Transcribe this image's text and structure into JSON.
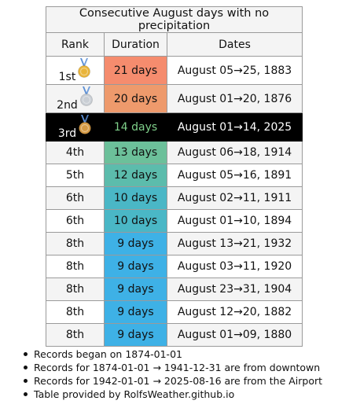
{
  "title": "Consecutive August days with no precipitation",
  "headers": {
    "rank": "Rank",
    "duration": "Duration",
    "dates": "Dates"
  },
  "rows": [
    {
      "rank": "1st",
      "medal": "gold-medal-icon",
      "duration": "21 days",
      "dates": "August 05→25, 1883",
      "color": "#f58c6e"
    },
    {
      "rank": "2nd",
      "medal": "silver-medal-icon",
      "duration": "20 days",
      "dates": "August 01→20, 1876",
      "color": "#ee9a6c"
    },
    {
      "rank": "3rd",
      "medal": "bronze-medal-icon",
      "duration": "14 days",
      "dates": "August 01→14, 2025",
      "color": "#000000",
      "current": true
    },
    {
      "rank": "4th",
      "duration": "13 days",
      "dates": "August 06→18, 1914",
      "color": "#6cc09a"
    },
    {
      "rank": "5th",
      "duration": "12 days",
      "dates": "August 05→16, 1891",
      "color": "#5cbcac"
    },
    {
      "rank": "6th",
      "duration": "10 days",
      "dates": "August 02→11, 1911",
      "color": "#4ab7c6"
    },
    {
      "rank": "6th",
      "duration": "10 days",
      "dates": "August 01→10, 1894",
      "color": "#4ab7c6"
    },
    {
      "rank": "8th",
      "duration": "9 days",
      "dates": "August 13→21, 1932",
      "color": "#3eb1e6"
    },
    {
      "rank": "8th",
      "duration": "9 days",
      "dates": "August 03→11, 1920",
      "color": "#3eb1e6"
    },
    {
      "rank": "8th",
      "duration": "9 days",
      "dates": "August 23→31, 1904",
      "color": "#3eb1e6"
    },
    {
      "rank": "8th",
      "duration": "9 days",
      "dates": "August 12→20, 1882",
      "color": "#3eb1e6"
    },
    {
      "rank": "8th",
      "duration": "9 days",
      "dates": "August 01→09, 1880",
      "color": "#3eb1e6"
    }
  ],
  "medal_colors": {
    "gold-medal-icon": "#e9b43a",
    "silver-medal-icon": "#c9ced4",
    "bronze-medal-icon": "#d49a45",
    "ribbon": "#5b8fd6"
  },
  "notes": [
    "Records began on 1874-01-01",
    "Records for 1874-01-01 → 1941-12-31 are from downtown",
    "Records for 1942-01-01 → 2025-08-16 are from the Airport",
    "Table provided by RolfsWeather.github.io"
  ]
}
